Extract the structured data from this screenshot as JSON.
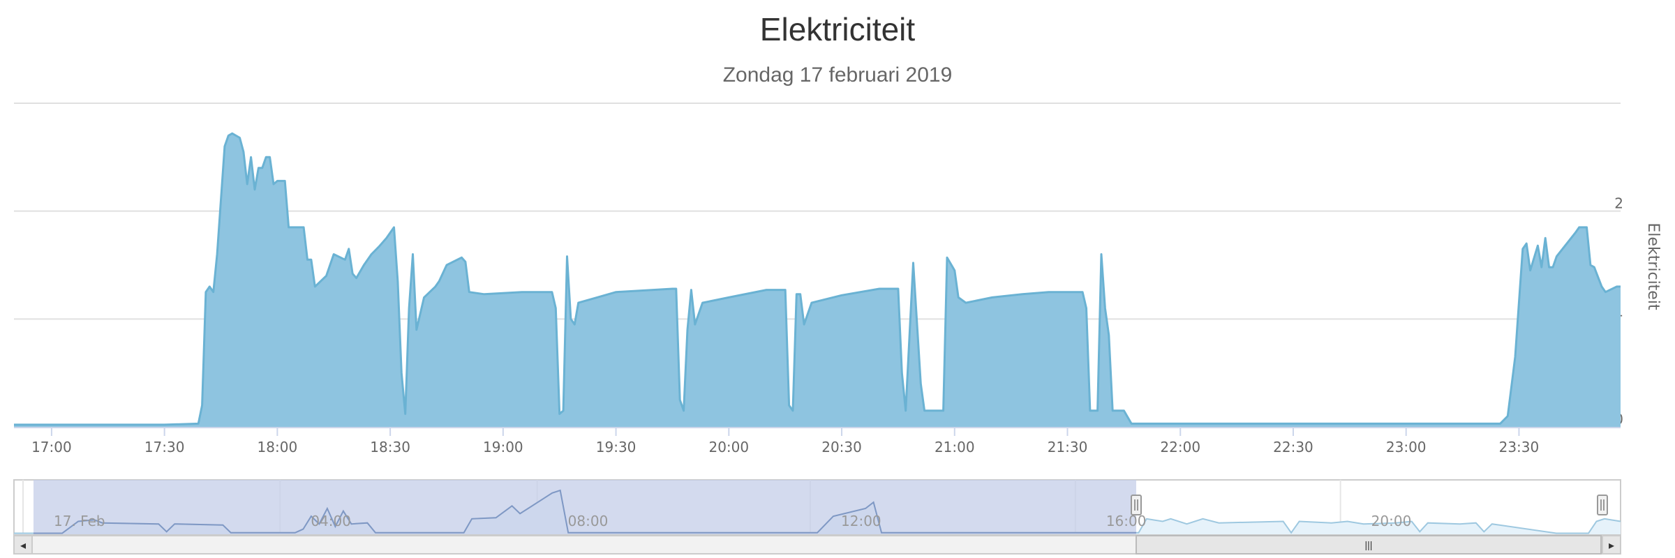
{
  "chart_data": {
    "type": "area",
    "title": "Elektriciteit",
    "subtitle": "Zondag 17 februari 2019",
    "ylabel": "Elektriciteit",
    "ylim": [
      0,
      3
    ],
    "yticks": [
      0,
      1,
      2
    ],
    "xlim": [
      "16:50",
      "23:57"
    ],
    "xticks": [
      "17:00",
      "17:30",
      "18:00",
      "18:30",
      "19:00",
      "19:30",
      "20:00",
      "20:30",
      "21:00",
      "21:30",
      "22:00",
      "22:30",
      "23:00",
      "23:30"
    ],
    "grid": true,
    "color": "#7cb5ec",
    "fill_color": "#8ec4e0",
    "series": [
      {
        "points": [
          [
            "16:50",
            0.02
          ],
          [
            "17:30",
            0.02
          ],
          [
            "17:39",
            0.03
          ],
          [
            "17:40",
            0.2
          ],
          [
            "17:41",
            1.25
          ],
          [
            "17:42",
            1.3
          ],
          [
            "17:43",
            1.25
          ],
          [
            "17:44",
            1.6
          ],
          [
            "17:45",
            2.1
          ],
          [
            "17:46",
            2.6
          ],
          [
            "17:47",
            2.7
          ],
          [
            "17:48",
            2.72
          ],
          [
            "17:50",
            2.68
          ],
          [
            "17:51",
            2.55
          ],
          [
            "17:52",
            2.25
          ],
          [
            "17:53",
            2.5
          ],
          [
            "17:54",
            2.2
          ],
          [
            "17:55",
            2.4
          ],
          [
            "17:56",
            2.4
          ],
          [
            "17:57",
            2.5
          ],
          [
            "17:58",
            2.5
          ],
          [
            "17:59",
            2.25
          ],
          [
            "18:00",
            2.28
          ],
          [
            "18:02",
            2.28
          ],
          [
            "18:03",
            1.85
          ],
          [
            "18:07",
            1.85
          ],
          [
            "18:08",
            1.55
          ],
          [
            "18:09",
            1.55
          ],
          [
            "18:10",
            1.3
          ],
          [
            "18:13",
            1.4
          ],
          [
            "18:15",
            1.6
          ],
          [
            "18:18",
            1.55
          ],
          [
            "18:19",
            1.65
          ],
          [
            "18:20",
            1.42
          ],
          [
            "18:21",
            1.38
          ],
          [
            "18:23",
            1.5
          ],
          [
            "18:25",
            1.6
          ],
          [
            "18:27",
            1.67
          ],
          [
            "18:29",
            1.75
          ],
          [
            "18:31",
            1.85
          ],
          [
            "18:32",
            1.35
          ],
          [
            "18:33",
            0.5
          ],
          [
            "18:34",
            0.12
          ],
          [
            "18:35",
            1.1
          ],
          [
            "18:36",
            1.6
          ],
          [
            "18:37",
            0.9
          ],
          [
            "18:39",
            1.2
          ],
          [
            "18:42",
            1.3
          ],
          [
            "18:43",
            1.35
          ],
          [
            "18:45",
            1.5
          ],
          [
            "18:49",
            1.57
          ],
          [
            "18:50",
            1.53
          ],
          [
            "18:51",
            1.25
          ],
          [
            "18:55",
            1.23
          ],
          [
            "19:00",
            1.24
          ],
          [
            "19:05",
            1.25
          ],
          [
            "19:13",
            1.25
          ],
          [
            "19:14",
            1.1
          ],
          [
            "19:15",
            0.12
          ],
          [
            "19:16",
            0.15
          ],
          [
            "19:17",
            1.58
          ],
          [
            "19:18",
            1.0
          ],
          [
            "19:19",
            0.95
          ],
          [
            "19:20",
            1.15
          ],
          [
            "19:25",
            1.2
          ],
          [
            "19:30",
            1.25
          ],
          [
            "19:45",
            1.28
          ],
          [
            "19:46",
            1.28
          ],
          [
            "19:47",
            0.25
          ],
          [
            "19:48",
            0.15
          ],
          [
            "19:49",
            0.9
          ],
          [
            "19:50",
            1.27
          ],
          [
            "19:51",
            0.95
          ],
          [
            "19:53",
            1.15
          ],
          [
            "20:00",
            1.2
          ],
          [
            "20:10",
            1.27
          ],
          [
            "20:15",
            1.27
          ],
          [
            "20:16",
            0.2
          ],
          [
            "20:17",
            0.15
          ],
          [
            "20:18",
            1.23
          ],
          [
            "20:19",
            1.23
          ],
          [
            "20:20",
            0.95
          ],
          [
            "20:22",
            1.15
          ],
          [
            "20:30",
            1.22
          ],
          [
            "20:40",
            1.28
          ],
          [
            "20:45",
            1.28
          ],
          [
            "20:46",
            0.5
          ],
          [
            "20:47",
            0.15
          ],
          [
            "20:49",
            1.52
          ],
          [
            "20:51",
            0.4
          ],
          [
            "20:52",
            0.15
          ],
          [
            "20:55",
            0.15
          ],
          [
            "20:57",
            0.15
          ],
          [
            "20:58",
            1.57
          ],
          [
            "21:00",
            1.45
          ],
          [
            "21:01",
            1.2
          ],
          [
            "21:03",
            1.15
          ],
          [
            "21:10",
            1.2
          ],
          [
            "21:18",
            1.23
          ],
          [
            "21:25",
            1.25
          ],
          [
            "21:34",
            1.25
          ],
          [
            "21:35",
            1.1
          ],
          [
            "21:36",
            0.15
          ],
          [
            "21:38",
            0.15
          ],
          [
            "21:39",
            1.6
          ],
          [
            "21:40",
            1.1
          ],
          [
            "21:41",
            0.85
          ],
          [
            "21:42",
            0.15
          ],
          [
            "21:45",
            0.15
          ],
          [
            "21:47",
            0.03
          ],
          [
            "23:25",
            0.03
          ],
          [
            "23:27",
            0.1
          ],
          [
            "23:29",
            0.65
          ],
          [
            "23:31",
            1.65
          ],
          [
            "23:32",
            1.7
          ],
          [
            "23:33",
            1.45
          ],
          [
            "23:35",
            1.68
          ],
          [
            "23:36",
            1.48
          ],
          [
            "23:37",
            1.75
          ],
          [
            "23:38",
            1.48
          ],
          [
            "23:39",
            1.48
          ],
          [
            "23:40",
            1.58
          ],
          [
            "23:45",
            1.8
          ],
          [
            "23:46",
            1.85
          ],
          [
            "23:48",
            1.85
          ],
          [
            "23:49",
            1.5
          ],
          [
            "23:50",
            1.48
          ],
          [
            "23:52",
            1.3
          ],
          [
            "23:53",
            1.25
          ],
          [
            "23:56",
            1.3
          ],
          [
            "23:57",
            1.3
          ]
        ]
      }
    ],
    "navigator": {
      "labels": [
        "17. Feb",
        "04:00",
        "08:00",
        "12:00",
        "16:00",
        "20:00"
      ],
      "series_color": "#9ec8e0",
      "selection_color": "#c4cde8",
      "points": [
        [
          0.0,
          0.02
        ],
        [
          0.03,
          0.02
        ],
        [
          0.04,
          0.25
        ],
        [
          0.05,
          0.28
        ],
        [
          0.055,
          0.22
        ],
        [
          0.09,
          0.2
        ],
        [
          0.095,
          0.05
        ],
        [
          0.1,
          0.2
        ],
        [
          0.13,
          0.18
        ],
        [
          0.135,
          0.03
        ],
        [
          0.175,
          0.03
        ],
        [
          0.18,
          0.1
        ],
        [
          0.185,
          0.35
        ],
        [
          0.19,
          0.2
        ],
        [
          0.195,
          0.5
        ],
        [
          0.2,
          0.15
        ],
        [
          0.205,
          0.45
        ],
        [
          0.21,
          0.2
        ],
        [
          0.22,
          0.22
        ],
        [
          0.225,
          0.03
        ],
        [
          0.28,
          0.03
        ],
        [
          0.285,
          0.3
        ],
        [
          0.3,
          0.32
        ],
        [
          0.31,
          0.55
        ],
        [
          0.315,
          0.4
        ],
        [
          0.33,
          0.7
        ],
        [
          0.335,
          0.8
        ],
        [
          0.34,
          0.85
        ],
        [
          0.345,
          0.03
        ],
        [
          0.5,
          0.03
        ],
        [
          0.51,
          0.35
        ],
        [
          0.53,
          0.5
        ],
        [
          0.535,
          0.62
        ],
        [
          0.54,
          0.03
        ],
        [
          0.7,
          0.03
        ],
        [
          0.705,
          0.3
        ],
        [
          0.715,
          0.25
        ],
        [
          0.72,
          0.3
        ],
        [
          0.73,
          0.2
        ],
        [
          0.74,
          0.3
        ],
        [
          0.75,
          0.22
        ],
        [
          0.79,
          0.25
        ],
        [
          0.795,
          0.03
        ],
        [
          0.8,
          0.25
        ],
        [
          0.82,
          0.22
        ],
        [
          0.83,
          0.25
        ],
        [
          0.84,
          0.2
        ],
        [
          0.86,
          0.22
        ],
        [
          0.87,
          0.25
        ],
        [
          0.875,
          0.05
        ],
        [
          0.88,
          0.22
        ],
        [
          0.9,
          0.2
        ],
        [
          0.91,
          0.22
        ],
        [
          0.915,
          0.05
        ],
        [
          0.92,
          0.2
        ],
        [
          0.96,
          0.02
        ],
        [
          0.98,
          0.02
        ],
        [
          0.985,
          0.25
        ],
        [
          0.99,
          0.3
        ],
        [
          1.0,
          0.25
        ]
      ]
    }
  },
  "scrollbar": {
    "left_arrow": "◂",
    "right_arrow": "▸",
    "grip": "|||"
  }
}
